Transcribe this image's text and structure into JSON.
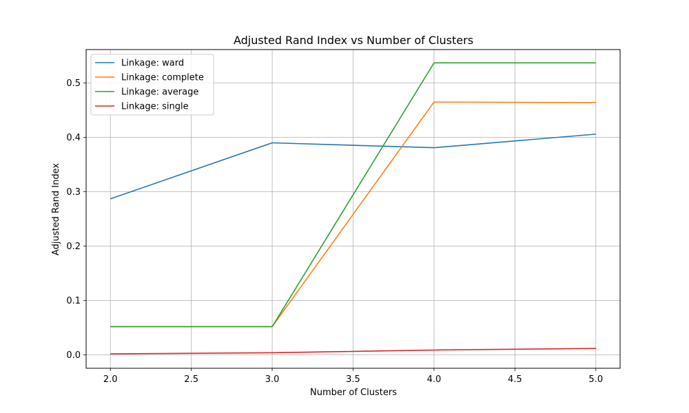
{
  "chart_data": {
    "type": "line",
    "title": "Adjusted Rand Index vs Number of Clusters",
    "xlabel": "Number of Clusters",
    "ylabel": "Adjusted Rand Index",
    "x": [
      2,
      3,
      4,
      5
    ],
    "xlim": [
      1.85,
      5.15
    ],
    "ylim": [
      -0.0245,
      0.5615
    ],
    "xticks": [
      "2.0",
      "2.5",
      "3.0",
      "3.5",
      "4.0",
      "4.5",
      "5.0"
    ],
    "xtick_values": [
      2.0,
      2.5,
      3.0,
      3.5,
      4.0,
      4.5,
      5.0
    ],
    "yticks": [
      "0.0",
      "0.1",
      "0.2",
      "0.3",
      "0.4",
      "0.5"
    ],
    "ytick_values": [
      0.0,
      0.1,
      0.2,
      0.3,
      0.4,
      0.5
    ],
    "grid": true,
    "legend_position": "top-left",
    "series": [
      {
        "name": "Linkage: ward",
        "color": "#1f77b4",
        "values": [
          0.287,
          0.39,
          0.381,
          0.406
        ]
      },
      {
        "name": "Linkage: complete",
        "color": "#ff7f0e",
        "values": [
          0.052,
          0.052,
          0.465,
          0.464
        ]
      },
      {
        "name": "Linkage: average",
        "color": "#2ca02c",
        "values": [
          0.052,
          0.052,
          0.537,
          0.537
        ]
      },
      {
        "name": "Linkage: single",
        "color": "#d62728",
        "values": [
          0.002,
          0.004,
          0.009,
          0.012
        ]
      }
    ]
  }
}
